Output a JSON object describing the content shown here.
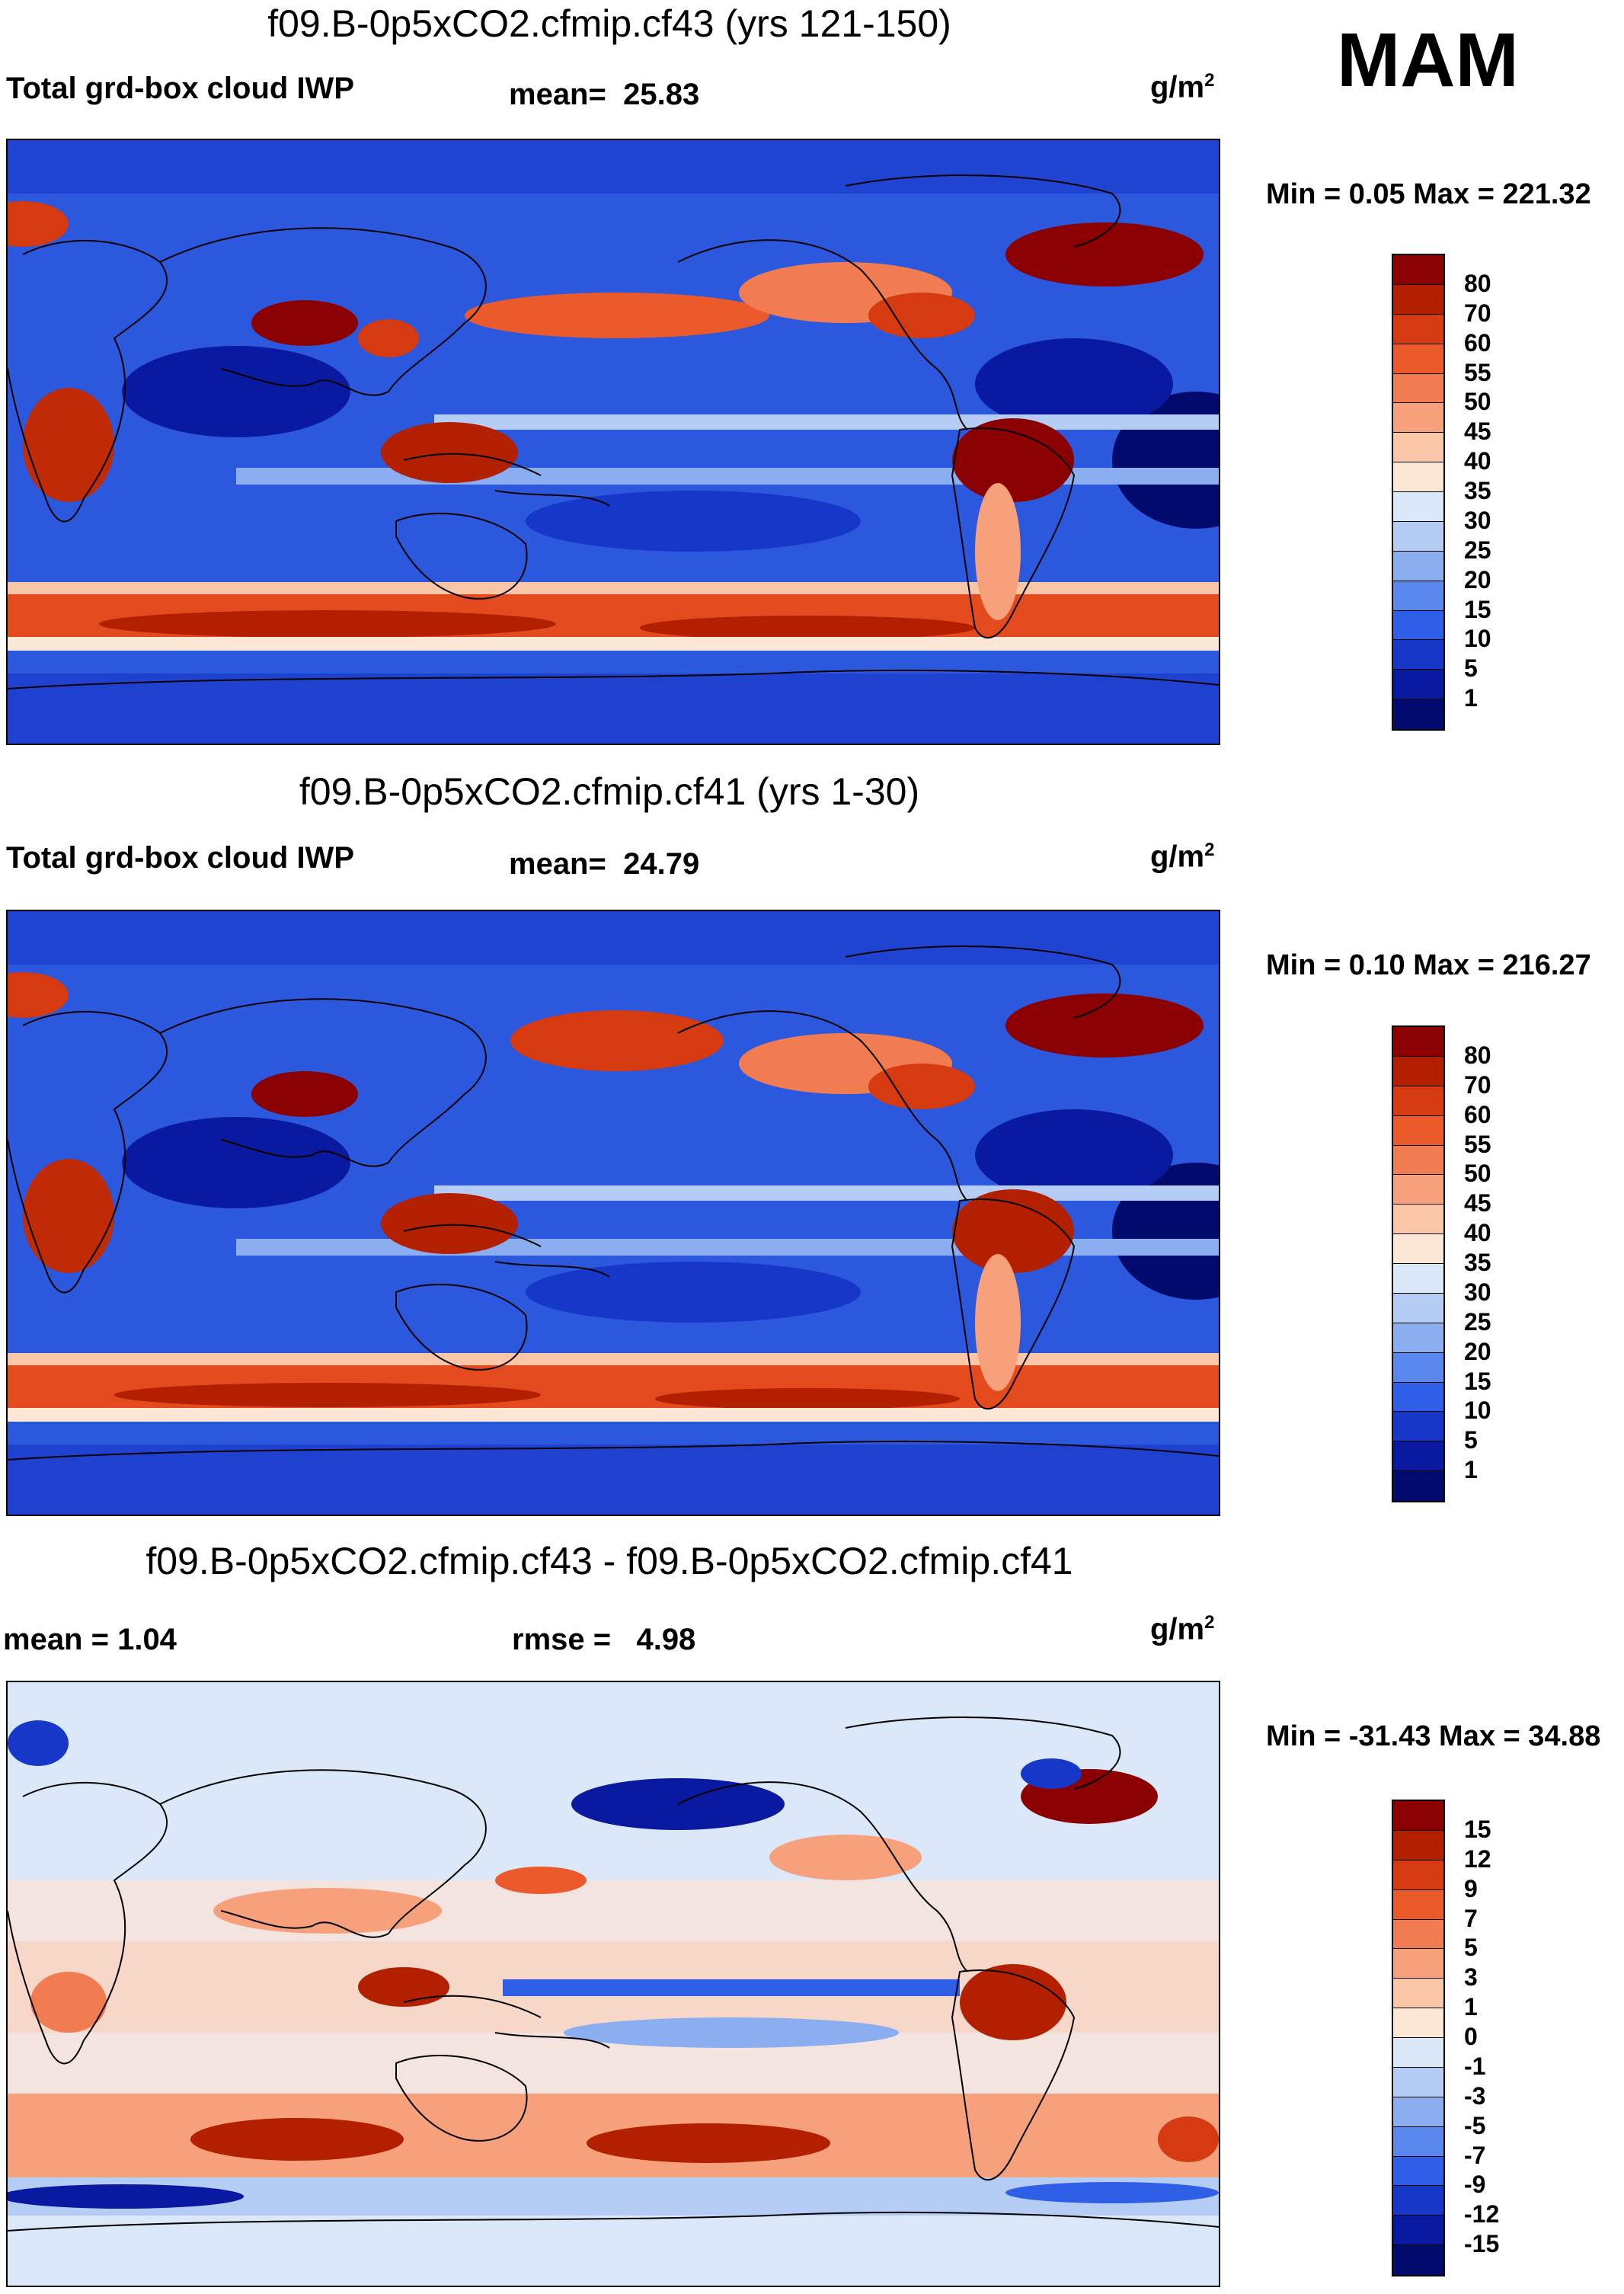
{
  "season": "MAM",
  "panels": [
    {
      "title": "f09.B-0p5xCO2.cfmip.cf43 (yrs 121-150)",
      "left_label": "Total grd-box cloud IWP",
      "stat_label": "mean=",
      "stat_value": "25.83",
      "units_base": "g/m",
      "units_exp": "2",
      "minmax": "Min =   0.05 Max = 221.32",
      "colorbar_labels": [
        "80",
        "70",
        "60",
        "55",
        "50",
        "45",
        "40",
        "35",
        "30",
        "25",
        "20",
        "15",
        "10",
        "5",
        "1"
      ],
      "colors": [
        "#8b0000",
        "#b22000",
        "#d63a10",
        "#ea5a2a",
        "#f27c52",
        "#f7a07c",
        "#fbc5a8",
        "#fde8d8",
        "#dbe8fa",
        "#b5cdf5",
        "#8aaef0",
        "#5a87ec",
        "#2f5fe6",
        "#1637c8",
        "#0a1aa0",
        "#030a6e"
      ]
    },
    {
      "title": "f09.B-0p5xCO2.cfmip.cf41 (yrs 1-30)",
      "left_label": "Total grd-box cloud IWP",
      "stat_label": "mean=",
      "stat_value": "24.79",
      "units_base": "g/m",
      "units_exp": "2",
      "minmax": "Min =   0.10 Max = 216.27",
      "colorbar_labels": [
        "80",
        "70",
        "60",
        "55",
        "50",
        "45",
        "40",
        "35",
        "30",
        "25",
        "20",
        "15",
        "10",
        "5",
        "1"
      ],
      "colors": [
        "#8b0000",
        "#b22000",
        "#d63a10",
        "#ea5a2a",
        "#f27c52",
        "#f7a07c",
        "#fbc5a8",
        "#fde8d8",
        "#dbe8fa",
        "#b5cdf5",
        "#8aaef0",
        "#5a87ec",
        "#2f5fe6",
        "#1637c8",
        "#0a1aa0",
        "#030a6e"
      ]
    },
    {
      "title": "f09.B-0p5xCO2.cfmip.cf43 - f09.B-0p5xCO2.cfmip.cf41",
      "left_label": "mean =    1.04",
      "stat_label": "rmse =",
      "stat_value": "4.98",
      "units_base": "g/m",
      "units_exp": "2",
      "minmax": "Min = -31.43 Max =  34.88",
      "colorbar_labels": [
        "15",
        "12",
        "9",
        "7",
        "5",
        "3",
        "1",
        "0",
        "-1",
        "-3",
        "-5",
        "-7",
        "-9",
        "-12",
        "-15"
      ],
      "colors": [
        "#8b0000",
        "#b22000",
        "#d63a10",
        "#ea5a2a",
        "#f27c52",
        "#f7a07c",
        "#fbc5a8",
        "#fde8d8",
        "#dbe8fa",
        "#b5cdf5",
        "#8aaef0",
        "#5a87ec",
        "#2f5fe6",
        "#1637c8",
        "#0a1aa0",
        "#030a6e"
      ]
    }
  ]
}
